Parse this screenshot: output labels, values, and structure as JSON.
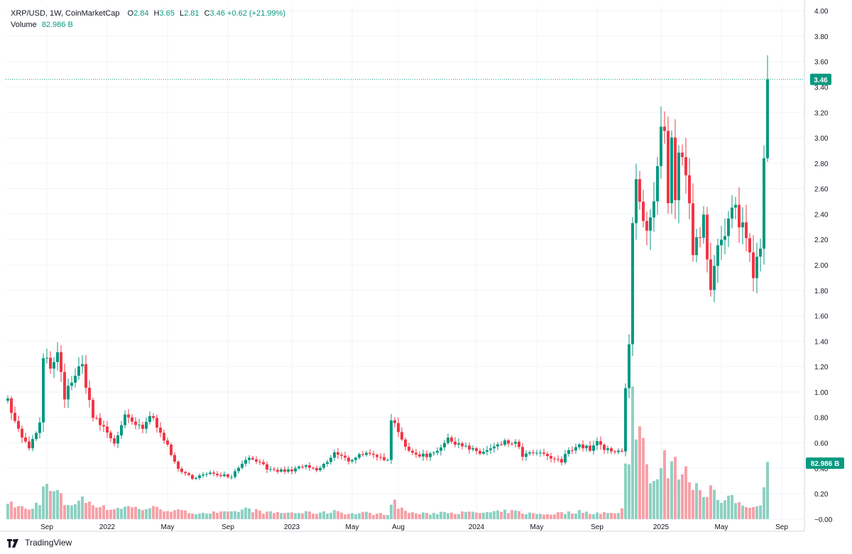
{
  "legend": {
    "symbol": "XRP/USD, 1W, CoinMarketCap",
    "o_label": "O",
    "o_value": "2.84",
    "h_label": "H",
    "h_value": "3.65",
    "l_label": "L",
    "l_value": "2.81",
    "c_label": "C",
    "c_value": "3.46",
    "change": "+0.62 (+21.99%)",
    "volume_label": "Volume",
    "volume_value": "82.986 B"
  },
  "footer": {
    "brand": "TradingView"
  },
  "colors": {
    "up": "#089981",
    "down": "#f23645",
    "vol_up": "#8ed1c3",
    "vol_down": "#f7a1a8",
    "grid": "#f0f3fa",
    "axis_text": "#131722"
  },
  "chart_data": {
    "type": "candlestick",
    "interval": "1W",
    "y_range": [
      -0.04,
      4.04
    ],
    "y_ticks": [
      "4.00",
      "3.80",
      "3.60",
      "3.40",
      "3.20",
      "3.00",
      "2.80",
      "2.60",
      "2.40",
      "2.20",
      "2.00",
      "1.80",
      "1.60",
      "1.40",
      "1.20",
      "1.00",
      "0.80",
      "0.60",
      "0.40",
      "0.20",
      "0.00"
    ],
    "y_tick_values": [
      4.0,
      3.8,
      3.6,
      3.4,
      3.2,
      3.0,
      2.8,
      2.6,
      2.4,
      2.2,
      2.0,
      1.8,
      1.6,
      1.4,
      1.2,
      1.0,
      0.8,
      0.6,
      0.4,
      0.2,
      0.0
    ],
    "x_ticks": [
      {
        "label": "Sep",
        "week": 11
      },
      {
        "label": "2022",
        "week": 28
      },
      {
        "label": "May",
        "week": 45
      },
      {
        "label": "Sep",
        "week": 62
      },
      {
        "label": "2023",
        "week": 80
      },
      {
        "label": "May",
        "week": 97
      },
      {
        "label": "Aug",
        "week": 110
      },
      {
        "label": "2024",
        "week": 132
      },
      {
        "label": "May",
        "week": 149
      },
      {
        "label": "Sep",
        "week": 166
      },
      {
        "label": "2025",
        "week": 184
      },
      {
        "label": "May",
        "week": 201
      },
      {
        "label": "Sep",
        "week": 218
      }
    ],
    "last_price": 3.46,
    "last_price_label": "3.46",
    "volume_tag_label": "82.986 B",
    "keypoints": [
      [
        0,
        0.95,
        0.12
      ],
      [
        3,
        0.7,
        0.1
      ],
      [
        6,
        0.55,
        0.07
      ],
      [
        9,
        0.75,
        0.14
      ],
      [
        10,
        1.25,
        0.26
      ],
      [
        13,
        1.2,
        0.2
      ],
      [
        14,
        1.3,
        0.22
      ],
      [
        16,
        0.95,
        0.12
      ],
      [
        18,
        1.1,
        0.12
      ],
      [
        21,
        1.2,
        0.15
      ],
      [
        24,
        0.8,
        0.13
      ],
      [
        27,
        0.72,
        0.09
      ],
      [
        30,
        0.6,
        0.08
      ],
      [
        33,
        0.8,
        0.1
      ],
      [
        38,
        0.7,
        0.08
      ],
      [
        40,
        0.82,
        0.09
      ],
      [
        43,
        0.7,
        0.08
      ],
      [
        46,
        0.5,
        0.07
      ],
      [
        49,
        0.36,
        0.06
      ],
      [
        52,
        0.33,
        0.05
      ],
      [
        58,
        0.36,
        0.05
      ],
      [
        63,
        0.34,
        0.05
      ],
      [
        67,
        0.48,
        0.08
      ],
      [
        71,
        0.46,
        0.06
      ],
      [
        73,
        0.38,
        0.05
      ],
      [
        80,
        0.38,
        0.05
      ],
      [
        83,
        0.42,
        0.05
      ],
      [
        87,
        0.38,
        0.05
      ],
      [
        90,
        0.45,
        0.05
      ],
      [
        92,
        0.52,
        0.07
      ],
      [
        96,
        0.46,
        0.04
      ],
      [
        100,
        0.52,
        0.05
      ],
      [
        104,
        0.48,
        0.04
      ],
      [
        107,
        0.48,
        0.04
      ],
      [
        108,
        0.8,
        0.15
      ],
      [
        110,
        0.7,
        0.1
      ],
      [
        113,
        0.52,
        0.05
      ],
      [
        118,
        0.5,
        0.04
      ],
      [
        121,
        0.55,
        0.05
      ],
      [
        124,
        0.62,
        0.06
      ],
      [
        127,
        0.6,
        0.05
      ],
      [
        130,
        0.55,
        0.05
      ],
      [
        133,
        0.52,
        0.05
      ],
      [
        136,
        0.55,
        0.05
      ],
      [
        140,
        0.6,
        0.06
      ],
      [
        143,
        0.6,
        0.06
      ],
      [
        145,
        0.5,
        0.05
      ],
      [
        149,
        0.52,
        0.04
      ],
      [
        153,
        0.48,
        0.04
      ],
      [
        156,
        0.45,
        0.05
      ],
      [
        158,
        0.55,
        0.05
      ],
      [
        161,
        0.58,
        0.06
      ],
      [
        164,
        0.55,
        0.05
      ],
      [
        166,
        0.6,
        0.05
      ],
      [
        168,
        0.55,
        0.05
      ],
      [
        171,
        0.52,
        0.04
      ],
      [
        173,
        0.55,
        0.08
      ],
      [
        174,
        1.05,
        0.42
      ],
      [
        175,
        1.4,
        0.5
      ],
      [
        176,
        2.3,
        0.98
      ],
      [
        177,
        2.6,
        0.72
      ],
      [
        178,
        2.4,
        0.94
      ],
      [
        180,
        2.2,
        0.4
      ],
      [
        182,
        2.4,
        0.3
      ],
      [
        184,
        3.0,
        0.35
      ],
      [
        185,
        3.0,
        0.45
      ],
      [
        186,
        2.4,
        0.38
      ],
      [
        187,
        2.95,
        0.55
      ],
      [
        188,
        2.6,
        0.4
      ],
      [
        190,
        2.95,
        0.4
      ],
      [
        191,
        2.6,
        0.35
      ],
      [
        193,
        2.15,
        0.3
      ],
      [
        195,
        2.3,
        0.25
      ],
      [
        196,
        2.4,
        0.2
      ],
      [
        198,
        1.9,
        0.25
      ],
      [
        200,
        2.1,
        0.15
      ],
      [
        202,
        2.2,
        0.12
      ],
      [
        204,
        2.4,
        0.18
      ],
      [
        206,
        2.4,
        0.12
      ],
      [
        208,
        2.2,
        0.1
      ],
      [
        210,
        2.0,
        0.12
      ],
      [
        212,
        2.2,
        0.1
      ],
      [
        213,
        2.84,
        0.25
      ],
      [
        214,
        3.46,
        0.45
      ]
    ]
  }
}
